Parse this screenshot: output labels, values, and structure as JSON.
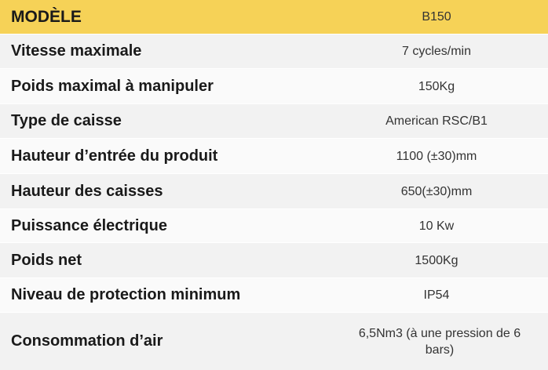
{
  "table": {
    "header": {
      "label": "MODÈLE",
      "value": "B150"
    },
    "rows": [
      {
        "label": "Vitesse maximale",
        "value": "7 cycles/min"
      },
      {
        "label": "Poids maximal à manipuler",
        "value": "150Kg"
      },
      {
        "label": "Type de caisse",
        "value": "American RSC/B1"
      },
      {
        "label": "Hauteur d’entrée du produit",
        "value": "1100 (±30)mm"
      },
      {
        "label": "Hauteur des caisses",
        "value": "650(±30)mm"
      },
      {
        "label": "Puissance électrique",
        "value": "10 Kw"
      },
      {
        "label": "Poids net",
        "value": "1500Kg"
      },
      {
        "label": "Niveau de protection minimum",
        "value": "IP54"
      },
      {
        "label": "Consommation d’air",
        "value": "6,5Nm3 (à une pression de 6 bars)"
      }
    ]
  }
}
